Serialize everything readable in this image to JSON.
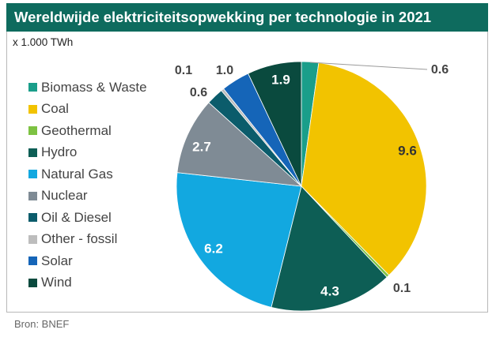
{
  "title": "Wereldwijde elektriciteitsopwekking per technologie in 2021",
  "unit": "x 1.000 TWh",
  "source": "Bron: BNEF",
  "chart_data": {
    "type": "pie",
    "title": "Wereldwijde elektriciteitsopwekking per technologie in 2021",
    "unit": "x 1.000 TWh",
    "slices": [
      {
        "name": "Biomass & Waste",
        "value": 0.6,
        "label": "0.6",
        "color": "#1a9e8a"
      },
      {
        "name": "Coal",
        "value": 9.6,
        "label": "9.6",
        "color": "#f2c300"
      },
      {
        "name": "Geothermal",
        "value": 0.1,
        "label": "0.1",
        "color": "#7dc242"
      },
      {
        "name": "Hydro",
        "value": 4.3,
        "label": "4.3",
        "color": "#0d5e55"
      },
      {
        "name": "Natural Gas",
        "value": 6.2,
        "label": "6.2",
        "color": "#12a8e0"
      },
      {
        "name": "Nuclear",
        "value": 2.7,
        "label": "2.7",
        "color": "#7f8b95"
      },
      {
        "name": "Oil & Diesel",
        "value": 0.6,
        "label": "0.6",
        "color": "#0b5c6b"
      },
      {
        "name": "Other - fossil",
        "value": 0.1,
        "label": "0.1",
        "color": "#bdbdbd"
      },
      {
        "name": "Solar",
        "value": 1.0,
        "label": "1.0",
        "color": "#1565b8"
      },
      {
        "name": "Wind",
        "value": 1.9,
        "label": "1.9",
        "color": "#0a4a3e"
      }
    ],
    "legend_position": "left",
    "start_angle": "12 o'clock",
    "direction": "clockwise"
  }
}
